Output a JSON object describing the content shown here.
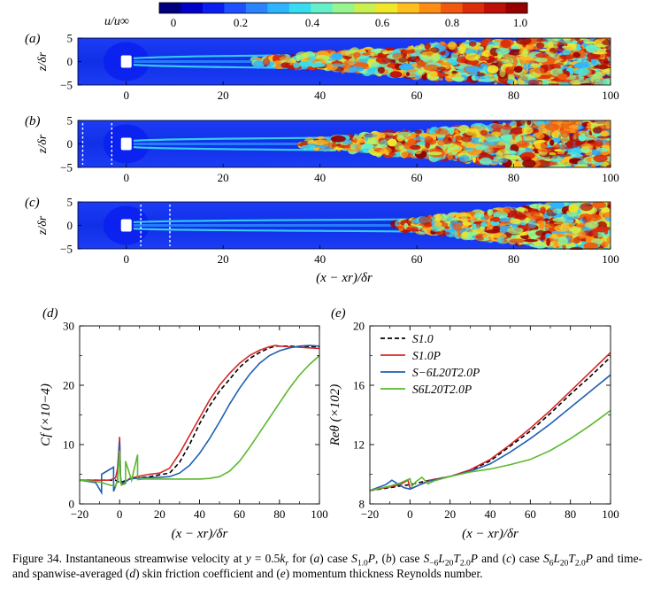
{
  "colorbar": {
    "label": "u/u∞",
    "ticks": [
      "0",
      "0.2",
      "0.4",
      "0.6",
      "0.8",
      "1.0"
    ],
    "levels": [
      "#00007f",
      "#0000c8",
      "#0a1ef0",
      "#1e50ff",
      "#2a84ff",
      "#2eb4ff",
      "#38dcf0",
      "#66f0c8",
      "#96f58c",
      "#c8f050",
      "#f0e62a",
      "#ffbe1e",
      "#ff8c14",
      "#f05a0f",
      "#dc2d0a",
      "#be0f08",
      "#960000"
    ]
  },
  "contour_panels": [
    {
      "label": "(a)",
      "ylabel": "z/δr",
      "yticks": [
        "5",
        "0",
        "−5"
      ],
      "xticks": [
        "0",
        "20",
        "40",
        "60",
        "80",
        "100"
      ],
      "dashed_lines_x": [],
      "transition_start": 26
    },
    {
      "label": "(b)",
      "ylabel": "z/δr",
      "yticks": [
        "5",
        "0",
        "−5"
      ],
      "xticks": [
        "0",
        "20",
        "40",
        "60",
        "80",
        "100"
      ],
      "dashed_lines_x": [
        -9,
        -3
      ],
      "transition_start": 36
    },
    {
      "label": "(c)",
      "ylabel": "z/δr",
      "yticks": [
        "5",
        "0",
        "−5"
      ],
      "xticks": [
        "0",
        "20",
        "40",
        "60",
        "80",
        "100"
      ],
      "dashed_lines_x": [
        3,
        9
      ],
      "transition_start": 56
    }
  ],
  "contour_xlabel": "(x − xr)/δr",
  "chart_data": [
    {
      "type": "line",
      "label": "(d)",
      "xlabel": "(x − xr)/δr",
      "ylabel": "Cf (×10−4)",
      "xlim": [
        -20,
        100
      ],
      "ylim": [
        0,
        30
      ],
      "xticks": [
        "−20",
        "0",
        "20",
        "40",
        "60",
        "80",
        "100"
      ],
      "yticks": [
        "0",
        "10",
        "20",
        "30"
      ],
      "series": [
        {
          "name": "S1.0",
          "color": "#000000",
          "dash": true,
          "x": [
            -20,
            -10,
            -5,
            -2,
            0,
            2,
            5,
            10,
            15,
            20,
            25,
            30,
            35,
            40,
            45,
            50,
            55,
            60,
            65,
            70,
            75,
            78,
            80,
            85,
            90,
            95,
            100
          ],
          "y": [
            4.0,
            4.0,
            4.0,
            4.0,
            3.6,
            3.8,
            4.2,
            4.4,
            4.6,
            4.9,
            5.2,
            7.0,
            10.0,
            13.5,
            16.5,
            19.0,
            21.0,
            23.0,
            24.5,
            25.5,
            26.3,
            26.6,
            26.6,
            26.6,
            26.5,
            26.5,
            26.5
          ]
        },
        {
          "name": "S1.0P",
          "color": "#d62728",
          "dash": false,
          "x": [
            -20,
            -10,
            -5,
            -2,
            -1,
            0,
            0.5,
            1,
            2,
            5,
            10,
            15,
            20,
            25,
            30,
            35,
            40,
            45,
            50,
            55,
            60,
            65,
            70,
            75,
            78,
            80,
            85,
            90,
            95,
            100
          ],
          "y": [
            4.0,
            4.0,
            4.0,
            4.4,
            6.0,
            11.3,
            4.5,
            3.2,
            3.4,
            4.3,
            4.7,
            5.0,
            5.2,
            6.0,
            8.5,
            11.5,
            14.5,
            17.5,
            20.0,
            22.0,
            23.7,
            25.0,
            25.9,
            26.5,
            26.7,
            26.6,
            26.5,
            26.4,
            26.3,
            26.2
          ]
        },
        {
          "name": "S−6L20T2.0P",
          "color": "#1f5fb4",
          "dash": false,
          "x": [
            -20,
            -12,
            -9,
            -9,
            -6,
            -3,
            -3,
            -1,
            0,
            0.5,
            1,
            2,
            5,
            10,
            20,
            25,
            30,
            35,
            40,
            45,
            50,
            55,
            60,
            65,
            70,
            75,
            80,
            85,
            90,
            95,
            100
          ],
          "y": [
            4.0,
            3.6,
            1.9,
            5.0,
            5.6,
            6.2,
            2.1,
            4.0,
            10.5,
            4.0,
            3.5,
            3.6,
            4.2,
            4.4,
            4.5,
            4.6,
            5.2,
            6.5,
            8.5,
            11.0,
            13.8,
            16.8,
            19.5,
            21.8,
            23.7,
            25.0,
            25.8,
            26.3,
            26.6,
            26.7,
            26.6
          ]
        },
        {
          "name": "S6L20T2.0P",
          "color": "#5cb82e",
          "dash": false,
          "x": [
            -20,
            -10,
            -5,
            -2,
            -1,
            0,
            0.5,
            1,
            2,
            3,
            3,
            6,
            9,
            9,
            12,
            20,
            30,
            40,
            45,
            50,
            55,
            60,
            65,
            70,
            75,
            80,
            85,
            90,
            95,
            100
          ],
          "y": [
            4.0,
            3.7,
            3.2,
            3.0,
            4.0,
            9.0,
            3.6,
            3.2,
            3.3,
            3.4,
            7.2,
            4.0,
            8.3,
            4.1,
            4.2,
            4.2,
            4.2,
            4.2,
            4.3,
            4.6,
            5.5,
            7.2,
            9.5,
            12.0,
            14.5,
            17.0,
            19.5,
            21.7,
            23.5,
            25.0
          ]
        }
      ]
    },
    {
      "type": "line",
      "label": "(e)",
      "xlabel": "(x − xr)/δr",
      "ylabel": "Reθ (×102)",
      "xlim": [
        -20,
        100
      ],
      "ylim": [
        8,
        20
      ],
      "xticks": [
        "−20",
        "0",
        "20",
        "40",
        "60",
        "80",
        "100"
      ],
      "yticks": [
        "8",
        "12",
        "16",
        "20"
      ],
      "legend_position": "top-left",
      "series": [
        {
          "name": "S1.0",
          "color": "#000000",
          "dash": true,
          "x": [
            -20,
            -10,
            0,
            10,
            20,
            30,
            40,
            50,
            60,
            70,
            80,
            90,
            100
          ],
          "y": [
            8.9,
            9.1,
            9.3,
            9.6,
            9.85,
            10.25,
            10.9,
            11.9,
            12.9,
            14.1,
            15.4,
            16.6,
            17.9
          ]
        },
        {
          "name": "S1.0P",
          "color": "#d62728",
          "dash": false,
          "x": [
            -20,
            -10,
            -5,
            -1,
            0,
            1,
            5,
            10,
            20,
            30,
            40,
            50,
            60,
            70,
            80,
            90,
            100
          ],
          "y": [
            8.9,
            9.15,
            9.3,
            9.6,
            9.1,
            9.05,
            9.3,
            9.6,
            9.85,
            10.3,
            11.0,
            12.0,
            13.1,
            14.3,
            15.6,
            16.9,
            18.2
          ]
        },
        {
          "name": "S−6L20T2.0P",
          "color": "#1f5fb4",
          "dash": false,
          "x": [
            -20,
            -12,
            -9,
            -6,
            -3,
            0,
            1,
            5,
            10,
            20,
            30,
            40,
            50,
            60,
            70,
            80,
            90,
            100
          ],
          "y": [
            8.9,
            9.3,
            9.6,
            9.35,
            9.1,
            9.0,
            9.05,
            9.3,
            9.55,
            9.85,
            10.2,
            10.7,
            11.5,
            12.4,
            13.4,
            14.5,
            15.6,
            16.7
          ]
        },
        {
          "name": "S6L20T2.0P",
          "color": "#5cb82e",
          "dash": false,
          "x": [
            -20,
            -10,
            -5,
            0,
            1,
            3,
            6,
            9,
            12,
            20,
            30,
            40,
            50,
            60,
            70,
            80,
            90,
            100
          ],
          "y": [
            8.9,
            9.2,
            9.4,
            9.7,
            9.2,
            9.5,
            9.8,
            9.35,
            9.55,
            9.85,
            10.15,
            10.35,
            10.65,
            11.0,
            11.6,
            12.4,
            13.3,
            14.3
          ]
        }
      ]
    }
  ],
  "caption": {
    "p1": "Figure 34. Instantaneous streamwise velocity at ",
    "eq_y": "y",
    "eq_eq": " = 0.5",
    "eq_k": "k",
    "eq_ksub": "r",
    "p2": " for (",
    "a": "a",
    "p3": ") case ",
    "case_a": "S",
    "case_a_sub": "1.0",
    "case_a_P": "P",
    "p4": ", (",
    "b": "b",
    "p5": ") case ",
    "case_b": "S",
    "case_b_sub1": "−6",
    "case_b_L": "L",
    "case_b_sub2": "20",
    "case_b_T": "T",
    "case_b_sub3": "2.0",
    "case_b_P": "P",
    "p6": " and (",
    "c": "c",
    "p7": ") case ",
    "case_c": "S",
    "case_c_sub1": "6",
    "case_c_L": "L",
    "case_c_sub2": "20",
    "case_c_T": "T",
    "case_c_sub3": "2.0",
    "case_c_P": "P",
    "p8": " and time- and spanwise-averaged (",
    "d": "d",
    "p9": ") skin friction coefficient and (",
    "e": "e",
    "p10": ") momentum thickness Reynolds number."
  }
}
